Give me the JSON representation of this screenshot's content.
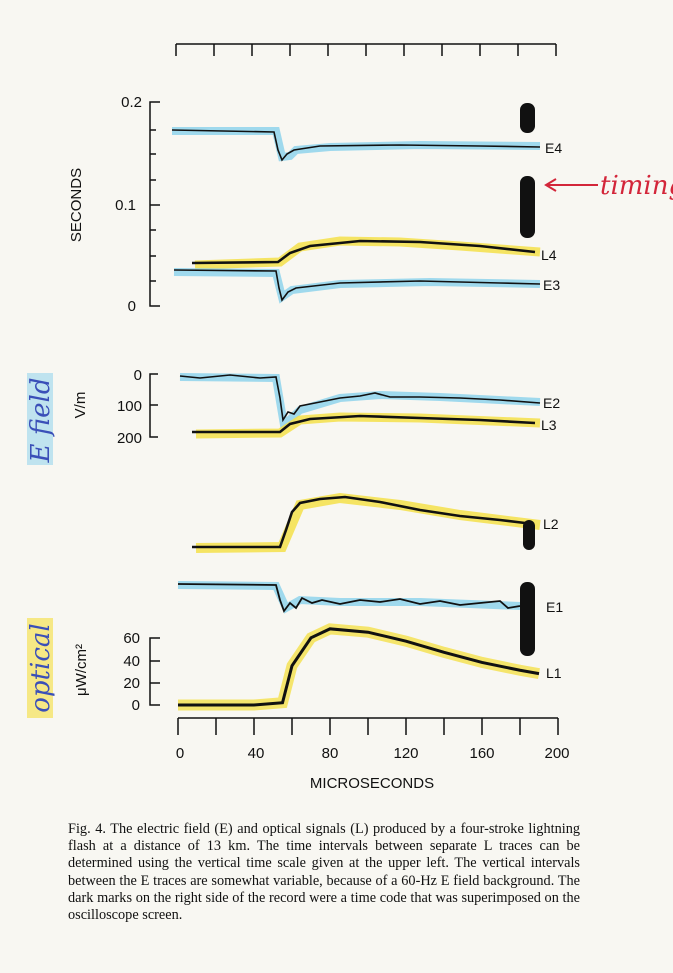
{
  "figure": {
    "time_scale": {
      "axis_label": "SECONDS",
      "ticks": [
        "0.2",
        "0.1",
        "0"
      ]
    },
    "efield_scale": {
      "unit": "V/m",
      "ticks": [
        "0",
        "100",
        "200"
      ],
      "annotation": "E field"
    },
    "optical_scale": {
      "unit": "μW/cm²",
      "ticks": [
        "60",
        "40",
        "20",
        "0"
      ],
      "annotation": "optical"
    },
    "x_axis": {
      "label": "MICROSECONDS",
      "ticks": [
        "0",
        "40",
        "80",
        "120",
        "160",
        "200"
      ]
    },
    "trace_labels": {
      "E4": "E4",
      "L4": "L4",
      "E3": "E3",
      "E2": "E2",
      "L3": "L3",
      "L2": "L2",
      "E1": "E1",
      "L1": "L1"
    },
    "timing_note": "timing",
    "colors": {
      "trace": "#111111",
      "e_highlight": "#8fd3ec",
      "l_highlight": "#f4e04a",
      "annotation_red": "#d3263a",
      "annotation_blue": "#3a4fb8"
    }
  },
  "chart_data": {
    "type": "line",
    "xlabel": "MICROSECONDS",
    "xlim": [
      0,
      200
    ],
    "series": [
      {
        "name": "L1",
        "x": [
          0,
          40,
          55,
          60,
          70,
          80,
          100,
          120,
          140,
          160,
          180,
          190
        ],
        "values": [
          0,
          0,
          2,
          35,
          60,
          68,
          65,
          57,
          47,
          38,
          31,
          28
        ]
      }
    ]
  },
  "caption": {
    "text": "Fig. 4.   The electric field (E) and optical signals (L) produced by a four-stroke lightning flash at a distance of 13 km. The time intervals between separate L traces can be determined using the vertical time scale given at the upper left. The vertical intervals between the E traces are somewhat variable, because of a 60-Hz E field background. The dark marks on the right side of the record were a time code that was superimposed on the oscilloscope screen."
  }
}
